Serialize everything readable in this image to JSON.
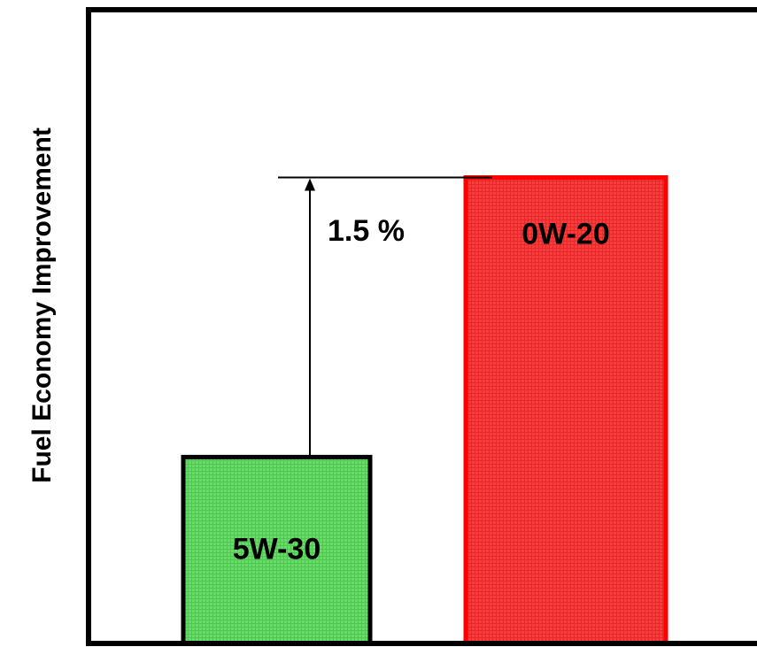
{
  "chart_data": {
    "type": "bar",
    "title": "",
    "xlabel": "",
    "ylabel": "Fuel Economy Improvement",
    "categories": [
      "5W-30",
      "0W-20"
    ],
    "values": [
      1.0,
      2.5
    ],
    "ylim": [
      0,
      3.4
    ],
    "colors": [
      "#66dd66",
      "#ff3a3a"
    ],
    "border_colors": [
      "#000000",
      "#ff0000"
    ],
    "annotation": {
      "text": "1.5 %",
      "from_category": "5W-30",
      "to_category": "0W-20",
      "difference": 1.5
    },
    "grid": false,
    "legend": "none"
  }
}
